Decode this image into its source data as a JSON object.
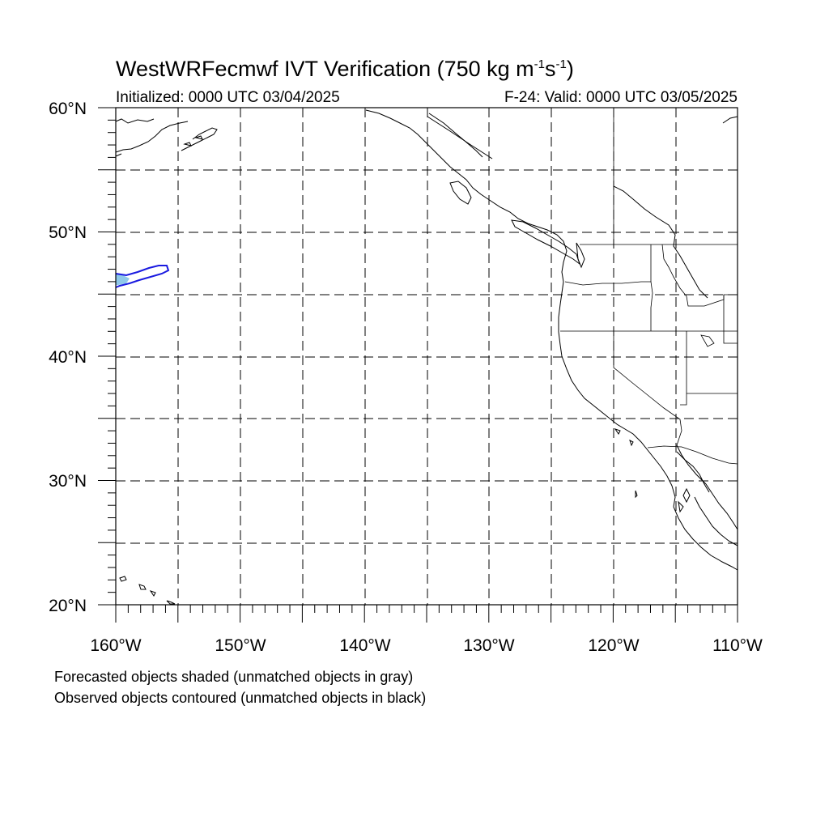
{
  "title": {
    "prefix": "WestWRFecmwf IVT Verification (750 kg m",
    "sup1": "-1",
    "mid": "s",
    "sup2": "-1",
    "suffix": ")"
  },
  "init_text": "Initialized: 0000 UTC 03/04/2025",
  "valid_text": "F-24: Valid: 0000 UTC 03/05/2025",
  "map": {
    "lon_range": [
      -160,
      -110
    ],
    "lat_range": [
      20,
      60
    ],
    "lat_labels": [
      "60°N",
      "50°N",
      "40°N",
      "30°N",
      "20°N"
    ],
    "lon_labels": [
      "160°W",
      "150°W",
      "140°W",
      "130°W",
      "120°W",
      "110°W"
    ],
    "grid_spacing_deg": 5,
    "grid_style": "dashed",
    "forecast_object_color": "#8ec8ea",
    "observed_object_color": "#1a1ae0",
    "coastline_color": "#000000"
  },
  "notes": {
    "line1": "Forecasted objects shaded (unmatched objects in gray)",
    "line2": "Observed objects contoured (unmatched objects in black)"
  }
}
